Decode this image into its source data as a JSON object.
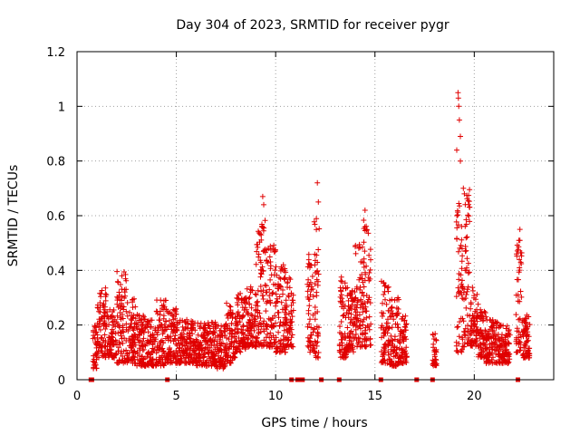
{
  "chart_data": {
    "type": "scatter",
    "title": "Day 304 of 2023, SRMTID for receiver pygr",
    "xlabel": "GPS time / hours",
    "ylabel": "SRMTID / TECUs",
    "xlim": [
      0,
      24
    ],
    "ylim": [
      0,
      1.2
    ],
    "xticks": [
      0,
      5,
      10,
      15,
      20
    ],
    "xtick_labels": [
      "0",
      "5",
      "10",
      "15",
      "20"
    ],
    "yticks": [
      0,
      0.2,
      0.4,
      0.6,
      0.8,
      1.0,
      1.2
    ],
    "ytick_labels": [
      "0",
      "0.2",
      "0.4",
      "0.6",
      "0.8",
      "1",
      "1.2"
    ],
    "grid": true,
    "marker": "+",
    "color": "#e00000",
    "activity_envelope": [
      {
        "t0": 0.8,
        "t1": 1.0,
        "lo": 0.04,
        "hi": 0.2
      },
      {
        "t0": 1.0,
        "t1": 1.5,
        "lo": 0.08,
        "hi": 0.34
      },
      {
        "t0": 1.5,
        "t1": 2.0,
        "lo": 0.08,
        "hi": 0.26
      },
      {
        "t0": 2.0,
        "t1": 2.5,
        "lo": 0.06,
        "hi": 0.4
      },
      {
        "t0": 2.5,
        "t1": 3.0,
        "lo": 0.06,
        "hi": 0.3
      },
      {
        "t0": 3.0,
        "t1": 3.5,
        "lo": 0.05,
        "hi": 0.24
      },
      {
        "t0": 3.5,
        "t1": 4.0,
        "lo": 0.05,
        "hi": 0.22
      },
      {
        "t0": 4.0,
        "t1": 4.5,
        "lo": 0.05,
        "hi": 0.3
      },
      {
        "t0": 4.5,
        "t1": 5.0,
        "lo": 0.06,
        "hi": 0.26
      },
      {
        "t0": 5.0,
        "t1": 6.0,
        "lo": 0.06,
        "hi": 0.22
      },
      {
        "t0": 6.0,
        "t1": 7.0,
        "lo": 0.05,
        "hi": 0.21
      },
      {
        "t0": 7.0,
        "t1": 7.5,
        "lo": 0.04,
        "hi": 0.2
      },
      {
        "t0": 7.5,
        "t1": 8.0,
        "lo": 0.06,
        "hi": 0.28
      },
      {
        "t0": 8.0,
        "t1": 8.5,
        "lo": 0.1,
        "hi": 0.32
      },
      {
        "t0": 8.5,
        "t1": 9.0,
        "lo": 0.12,
        "hi": 0.34
      },
      {
        "t0": 9.0,
        "t1": 9.5,
        "lo": 0.12,
        "hi": 0.6
      },
      {
        "t0": 9.5,
        "t1": 10.0,
        "lo": 0.12,
        "hi": 0.5
      },
      {
        "t0": 10.0,
        "t1": 10.5,
        "lo": 0.1,
        "hi": 0.45
      },
      {
        "t0": 10.5,
        "t1": 10.9,
        "lo": 0.12,
        "hi": 0.38
      },
      {
        "t0": 11.6,
        "t1": 11.9,
        "lo": 0.1,
        "hi": 0.48
      },
      {
        "t0": 11.9,
        "t1": 12.2,
        "lo": 0.08,
        "hi": 0.6
      },
      {
        "t0": 13.2,
        "t1": 13.6,
        "lo": 0.08,
        "hi": 0.4
      },
      {
        "t0": 13.6,
        "t1": 14.0,
        "lo": 0.1,
        "hi": 0.34
      },
      {
        "t0": 14.0,
        "t1": 14.4,
        "lo": 0.12,
        "hi": 0.5
      },
      {
        "t0": 14.4,
        "t1": 14.8,
        "lo": 0.12,
        "hi": 0.6
      },
      {
        "t0": 15.3,
        "t1": 15.7,
        "lo": 0.06,
        "hi": 0.36
      },
      {
        "t0": 15.7,
        "t1": 16.2,
        "lo": 0.05,
        "hi": 0.3
      },
      {
        "t0": 16.2,
        "t1": 16.6,
        "lo": 0.06,
        "hi": 0.24
      },
      {
        "t0": 17.9,
        "t1": 18.1,
        "lo": 0.05,
        "hi": 0.18
      },
      {
        "t0": 19.1,
        "t1": 19.4,
        "lo": 0.1,
        "hi": 0.66
      },
      {
        "t0": 19.4,
        "t1": 19.8,
        "lo": 0.12,
        "hi": 0.7
      },
      {
        "t0": 19.8,
        "t1": 20.2,
        "lo": 0.12,
        "hi": 0.34
      },
      {
        "t0": 20.2,
        "t1": 20.6,
        "lo": 0.08,
        "hi": 0.26
      },
      {
        "t0": 20.6,
        "t1": 21.2,
        "lo": 0.06,
        "hi": 0.22
      },
      {
        "t0": 21.2,
        "t1": 21.8,
        "lo": 0.06,
        "hi": 0.2
      },
      {
        "t0": 22.1,
        "t1": 22.4,
        "lo": 0.1,
        "hi": 0.52
      },
      {
        "t0": 22.4,
        "t1": 22.8,
        "lo": 0.08,
        "hi": 0.24
      }
    ],
    "notable_points": [
      {
        "x": 9.35,
        "y": 0.67
      },
      {
        "x": 9.4,
        "y": 0.64
      },
      {
        "x": 12.1,
        "y": 0.72
      },
      {
        "x": 12.15,
        "y": 0.65
      },
      {
        "x": 14.5,
        "y": 0.62
      },
      {
        "x": 19.12,
        "y": 0.84
      },
      {
        "x": 19.18,
        "y": 1.05
      },
      {
        "x": 19.2,
        "y": 1.03
      },
      {
        "x": 19.22,
        "y": 1.0
      },
      {
        "x": 19.25,
        "y": 0.95
      },
      {
        "x": 19.3,
        "y": 0.89
      },
      {
        "x": 19.3,
        "y": 0.8
      },
      {
        "x": 19.45,
        "y": 0.7
      },
      {
        "x": 19.5,
        "y": 0.68
      },
      {
        "x": 22.3,
        "y": 0.55
      }
    ],
    "zero_points_x": [
      0.7,
      0.75,
      4.55,
      10.8,
      11.1,
      11.2,
      11.35,
      12.3,
      13.2,
      15.3,
      17.1,
      17.9,
      22.2
    ]
  }
}
